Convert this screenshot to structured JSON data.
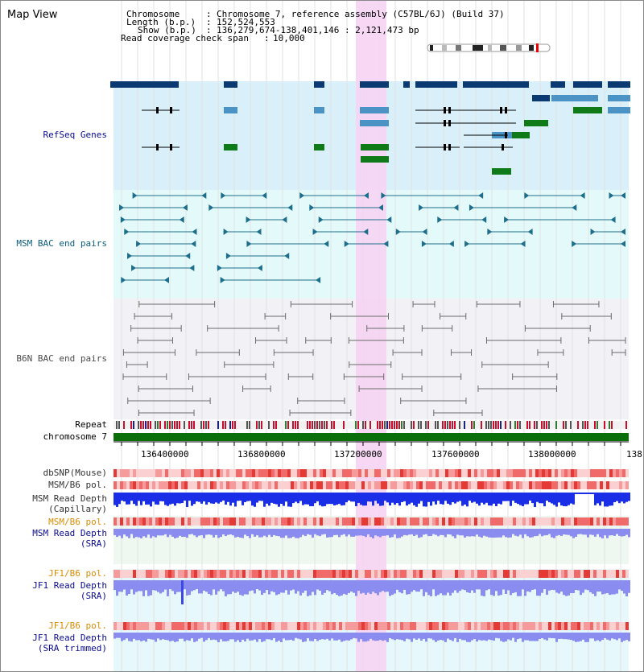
{
  "title": "Map View",
  "info": {
    "chromosome_label": "Chromosome",
    "chromosome_value": "Chromosome 7, reference assembly (C57BL/6J) (Build 37)",
    "length_label": "Length (b.p.)",
    "length_value": "152,524,553",
    "show_label": "Show (b.p.)",
    "show_value": "136,279,674-138,401,146 : 2,121,473 bp",
    "coverage_label": "Read coverage check span",
    "coverage_value": "10,000"
  },
  "tracks": {
    "refseq": "RefSeq Genes",
    "msm_bac": "MSM BAC end pairs",
    "b6n_bac": "B6N BAC end pairs",
    "repeat": "Repeat",
    "chromosome": "chromosome 7",
    "dbsnp": "dbSNP(Mouse)",
    "msm_b6_pol_1": "MSM/B6 pol.",
    "msm_read_depth_cap_1": "MSM Read Depth",
    "msm_read_depth_cap_2": "(Capillary)",
    "msm_b6_pol_2": "MSM/B6 pol.",
    "msm_read_depth_sra_1": "MSM Read Depth",
    "msm_read_depth_sra_2": "(SRA)",
    "jf1_b6_pol_1": "JF1/B6 pol.",
    "jf1_read_depth_sra_1": "JF1 Read Depth",
    "jf1_read_depth_sra_2": "(SRA)",
    "jf1_b6_pol_2": "JF1/B6 pol.",
    "jf1_read_depth_trim_1": "JF1 Read Depth",
    "jf1_read_depth_trim_2": "(SRA trimmed)"
  },
  "axis_ticks": [
    "136400000",
    "136800000",
    "137200000",
    "137600000",
    "138000000",
    "138"
  ],
  "colors": {
    "refseq_bg": "#d9f0fb",
    "msm_bg": "#e4f9f9",
    "b6n_bg": "#f2f2f6",
    "highlight": "#f6d4f3",
    "gene_dark": "#0b3a73",
    "gene_light": "#4a93c4",
    "gene_green": "#0f7a18",
    "bac_teal": "#1d6e8c",
    "bac_gray": "#6b6b6b",
    "chrom_green": "#0a6e0a",
    "depth_blue": "#1a2ee8",
    "depth_light": "#8a8cf0",
    "label_navy": "#0a0a8c",
    "label_teal": "#0a5c7a",
    "label_orange": "#d98c00"
  }
}
